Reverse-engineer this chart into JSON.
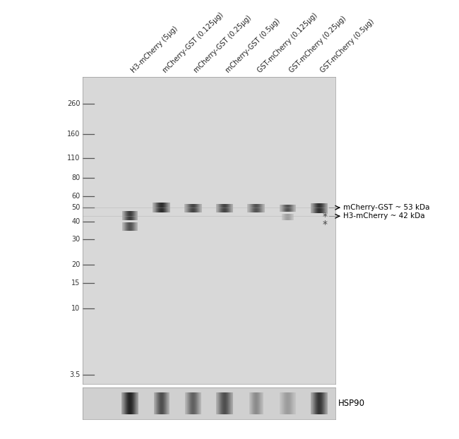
{
  "white_bg": "#ffffff",
  "panel_bg": "#d8d8d8",
  "hsp_bg": "#d0d0d0",
  "lane_labels": [
    "H3-mCherry (5μg)",
    "mCherry-GST (0.125μg)",
    "mCherry-GST (0.25μg)",
    "mCherry-GST (0.5μg)",
    "GST-mCherry (0.125μg)",
    "GST-mCherry (0.25μg)",
    "GST-mCherry (0.5μg)"
  ],
  "mw_labels": [
    "260",
    "160",
    "110",
    "80",
    "60",
    "50",
    "40",
    "30",
    "20",
    "15",
    "10",
    "3.5"
  ],
  "mw_values": [
    260,
    160,
    110,
    80,
    60,
    50,
    40,
    30,
    20,
    15,
    10,
    3.5
  ],
  "annotation1": "mCherry-GST ~ 53 kDa",
  "annotation2": "H3-mCherry ~ 42 kDa",
  "hsp90_label": "HSP90",
  "tick_color": "#555555",
  "label_color": "#333333"
}
